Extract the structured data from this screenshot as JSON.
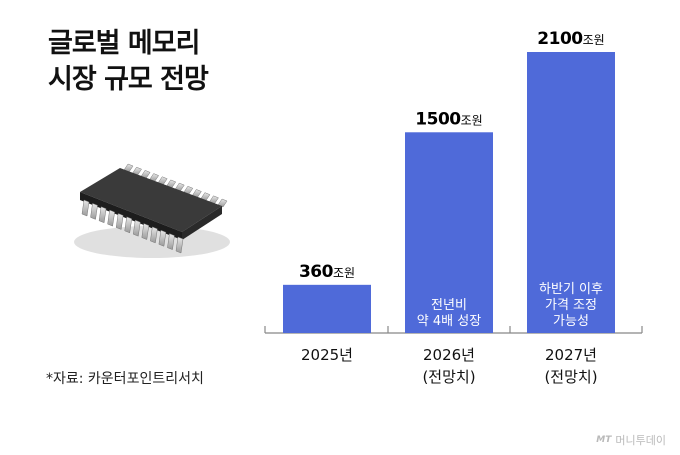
{
  "title": [
    "글로벌 메모리",
    "시장 규모 전망"
  ],
  "source": "*자료: 카운터포인트리서치",
  "watermark": {
    "brand": "MT",
    "text": "머니투데이"
  },
  "colors": {
    "bar": "#4f6ad9",
    "axis": "#888888",
    "inner_text": "#ffffff"
  },
  "chart_data": {
    "type": "bar",
    "categories": [
      [
        "2025년"
      ],
      [
        "2026년",
        "(전망치)"
      ],
      [
        "2027년",
        "(전망치)"
      ]
    ],
    "values": [
      360,
      1500,
      2100
    ],
    "unit": "조원",
    "value_labels": [
      "360",
      "1500",
      "2100"
    ],
    "annotations": [
      [],
      [
        "전년비",
        "약 4배 성장"
      ],
      [
        "하반기 이후",
        "가격 조정",
        "가능성"
      ]
    ],
    "ylim": [
      0,
      2100
    ]
  }
}
